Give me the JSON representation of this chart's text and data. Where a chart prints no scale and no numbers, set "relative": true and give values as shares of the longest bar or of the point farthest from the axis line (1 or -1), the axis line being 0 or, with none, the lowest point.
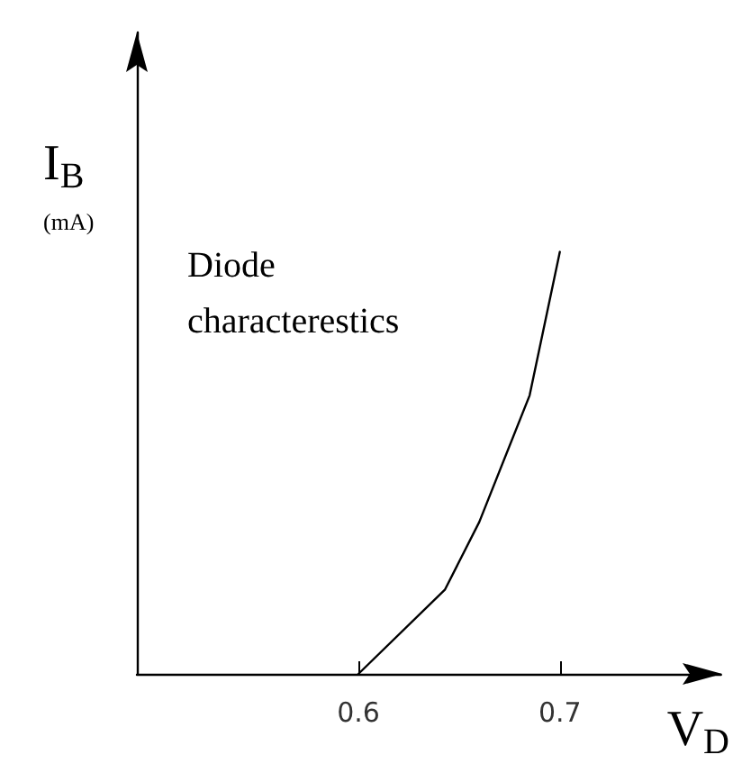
{
  "chart_data": {
    "type": "line",
    "xlabel": "V$_{D}$",
    "ylabel": "I$_{B}$ (mA)",
    "annotations": [
      "Diode characterestics"
    ],
    "x": [
      0.6,
      0.643,
      0.66,
      0.685,
      0.7
    ],
    "values": [
      0,
      0.2,
      0.36,
      0.66,
      1
    ],
    "color": "#000000",
    "relative": true,
    "xlim": [
      0.49,
      0.78
    ],
    "xticks": [
      0.6,
      0.7
    ],
    "grid": false,
    "marker": "none",
    "line_style": "solid"
  }
}
